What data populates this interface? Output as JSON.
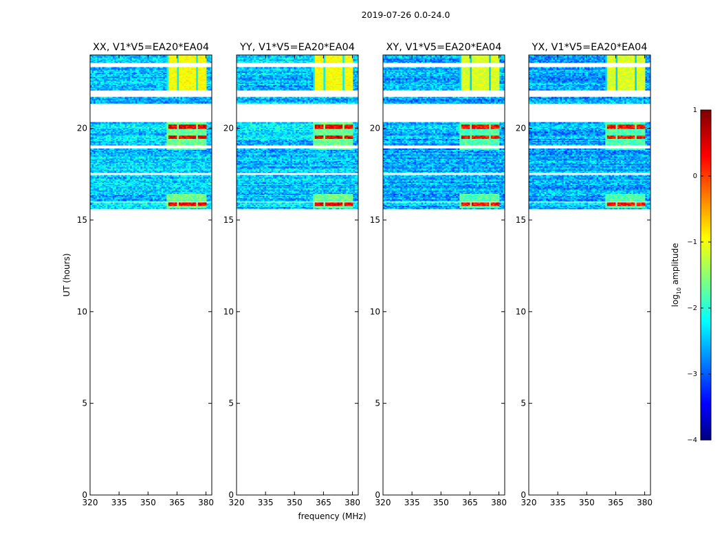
{
  "suptitle": "2019-07-26 0.0-24.0",
  "chart_data": {
    "type": "heatmap",
    "xlabel": "frequency (MHz)",
    "ylabel": "UT (hours)",
    "xlim": [
      320,
      383
    ],
    "ylim": [
      0,
      24
    ],
    "xticks": [
      "320",
      "335",
      "350",
      "365",
      "380"
    ],
    "xtick_values": [
      320,
      335,
      350,
      365,
      380
    ],
    "yticks": [
      "0",
      "5",
      "10",
      "15",
      "20"
    ],
    "ytick_values": [
      0,
      5,
      10,
      15,
      20
    ],
    "colorbar": {
      "label_main": "log",
      "label_sub": "10",
      "label_rest": " amplitude",
      "ticks": [
        "−4",
        "−3",
        "−2",
        "−1",
        "0",
        "1"
      ],
      "tick_values": [
        -4,
        -3,
        -2,
        -1,
        0,
        1
      ],
      "range": [
        -4,
        1
      ]
    },
    "data_time_range_hours": [
      15.6,
      24
    ],
    "data_gaps_hours": [
      [
        23.6,
        23.35
      ],
      [
        22.1,
        21.7
      ],
      [
        21.35,
        20.35
      ],
      [
        19.05,
        18.9
      ],
      [
        17.55,
        17.45
      ],
      [
        16.05,
        15.95
      ]
    ],
    "bright_band_mhz": [
      360,
      380
    ],
    "panels": [
      {
        "title": "XX, V1*V5=EA20*EA04"
      },
      {
        "title": "YY, V1*V5=EA20*EA04"
      },
      {
        "title": "XY, V1*V5=EA20*EA04"
      },
      {
        "title": "YX, V1*V5=EA20*EA04"
      }
    ]
  }
}
